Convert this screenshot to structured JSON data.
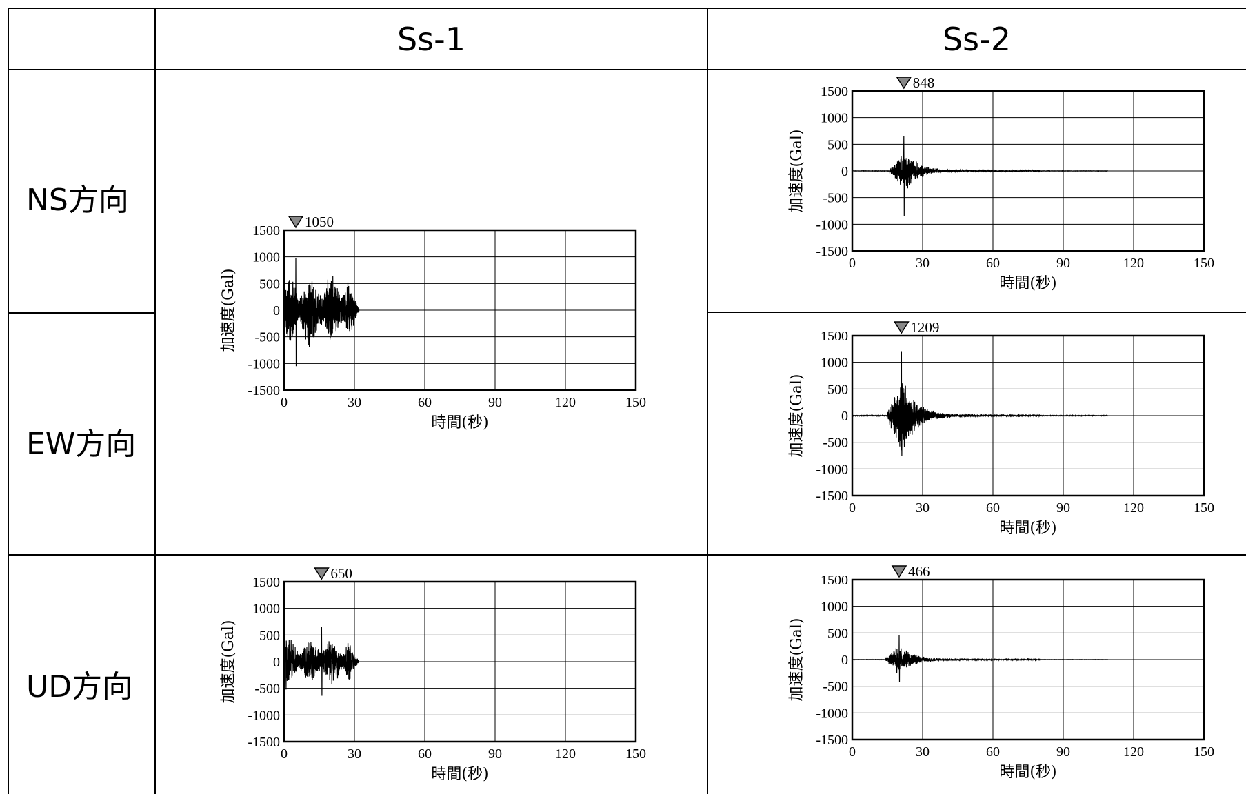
{
  "table": {
    "columns": [
      "Ss-1",
      "Ss-2"
    ],
    "rows": [
      "NS方向",
      "EW方向",
      "UD方向"
    ]
  },
  "chart_common": {
    "ylabel": "加速度(Gal)",
    "xlabel": "時間(秒)",
    "xlim": [
      0,
      150
    ],
    "ylim": [
      -1500,
      1500
    ],
    "xticks": [
      0,
      30,
      60,
      90,
      120,
      150
    ],
    "yticks": [
      1500,
      1000,
      500,
      0,
      -500,
      -1000,
      -1500
    ],
    "grid": true
  },
  "chart_data": [
    {
      "type": "line",
      "column": "Ss-1",
      "row": "NS方向 / EW方向",
      "peak_label": "1050",
      "peak_time": 5,
      "duration": 32,
      "max_pos": 980,
      "max_neg": -1050,
      "xlabel": "時間(秒)",
      "ylabel": "加速度(Gal)",
      "xlim": [
        0,
        150
      ],
      "ylim": [
        -1500,
        1500
      ]
    },
    {
      "type": "line",
      "column": "Ss-2",
      "row": "NS方向",
      "peak_label": "848",
      "peak_time": 22,
      "duration": 109,
      "max_pos": 650,
      "max_neg": -848,
      "xlabel": "時間(秒)",
      "ylabel": "加速度(Gal)",
      "xlim": [
        0,
        150
      ],
      "ylim": [
        -1500,
        1500
      ]
    },
    {
      "type": "line",
      "column": "Ss-2",
      "row": "EW方向",
      "peak_label": "1209",
      "peak_time": 21,
      "duration": 109,
      "max_pos": 1209,
      "max_neg": -750,
      "xlabel": "時間(秒)",
      "ylabel": "加速度(Gal)",
      "xlim": [
        0,
        150
      ],
      "ylim": [
        -1500,
        1500
      ]
    },
    {
      "type": "line",
      "column": "Ss-1",
      "row": "UD方向",
      "peak_label": "650",
      "peak_time": 16,
      "duration": 32,
      "max_pos": 650,
      "max_neg": -640,
      "xlabel": "時間(秒)",
      "ylabel": "加速度(Gal)",
      "xlim": [
        0,
        150
      ],
      "ylim": [
        -1500,
        1500
      ]
    },
    {
      "type": "line",
      "column": "Ss-2",
      "row": "UD方向",
      "peak_label": "466",
      "peak_time": 20,
      "duration": 109,
      "max_pos": 466,
      "max_neg": -420,
      "xlabel": "時間(秒)",
      "ylabel": "加速度(Gal)",
      "xlim": [
        0,
        150
      ],
      "ylim": [
        -1500,
        1500
      ]
    }
  ]
}
